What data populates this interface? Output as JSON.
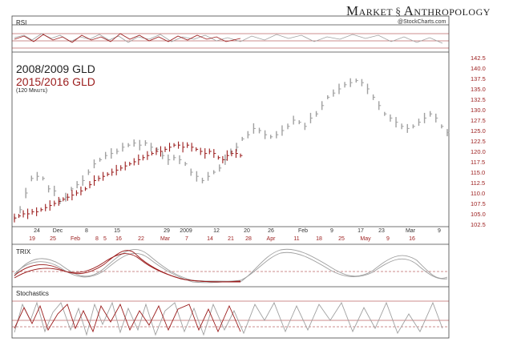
{
  "brand": {
    "name_left": "Market",
    "name_right": "Anthropology",
    "dna_icon": "dna-icon",
    "credit": "@StockCharts.com"
  },
  "panels": {
    "rsi": "RSI",
    "trix": "TRIX",
    "stoch": "Stochastics"
  },
  "chart_data": {
    "type": "line",
    "title": "2008/2009 GLD",
    "subtitle": "2015/2016 GLD",
    "note": "(120 Minute)",
    "ylim": [
      102.5,
      142.5
    ],
    "y_ticks": [
      142.5,
      140.0,
      137.5,
      135.0,
      132.5,
      130.0,
      127.5,
      125.0,
      122.5,
      120.0,
      117.5,
      115.0,
      112.5,
      110.0,
      107.5,
      105.0,
      102.5
    ],
    "x_ticks_top": [
      "24",
      "Dec",
      "8",
      "15",
      "29",
      "2009",
      "12",
      "20",
      "26",
      "Feb",
      "9",
      "17",
      "23",
      "Mar",
      "9"
    ],
    "x_ticks_bottom": [
      "19",
      "25",
      "Feb",
      "8",
      "5",
      "16",
      "22",
      "Mar",
      "7",
      "14",
      "21",
      "28",
      "Apr",
      "11",
      "18",
      "25",
      "May",
      "9",
      "16"
    ],
    "colors": {
      "gld_2008": "#a0a0a0",
      "gld_2015": "#9b1c1c",
      "axis": "#9b1c1c"
    },
    "series": [
      {
        "name": "2008/2009 GLD",
        "color": "#a0a0a0",
        "values": [
          104,
          106,
          110,
          113.5,
          114,
          113.5,
          111,
          110.5,
          108,
          109,
          111,
          112,
          113,
          115,
          117,
          118,
          119,
          119.5,
          120,
          121,
          121.5,
          122,
          121.5,
          122,
          121,
          120.5,
          119,
          118,
          118.5,
          118,
          117,
          115,
          114,
          113,
          114,
          115,
          116,
          118,
          120,
          121,
          123,
          124,
          125.5,
          125,
          124,
          123.5,
          124,
          125,
          126,
          127.5,
          127,
          126,
          128,
          129,
          131,
          133,
          134,
          135,
          136,
          136.5,
          137,
          136.5,
          135,
          133,
          131,
          129,
          128,
          127,
          126,
          125.5,
          126,
          127,
          128,
          129,
          128,
          126,
          124.5
        ]
      },
      {
        "name": "2015/2016 GLD",
        "color": "#9b1c1c",
        "values": [
          104,
          104.5,
          105,
          105,
          105.5,
          105.5,
          106,
          106.5,
          107,
          107.5,
          108,
          108.5,
          109,
          109.5,
          110,
          110.5,
          111,
          112,
          113,
          113.5,
          114,
          114.5,
          115,
          115.5,
          116,
          116.5,
          117,
          117.5,
          118,
          118.5,
          119,
          119.5,
          120,
          120,
          120.5,
          121,
          121.5,
          121.5,
          121,
          121.5,
          121,
          120.5,
          120,
          119.5,
          120,
          119.5,
          118.5,
          118,
          119,
          119.5,
          119.5,
          119
        ]
      }
    ]
  }
}
